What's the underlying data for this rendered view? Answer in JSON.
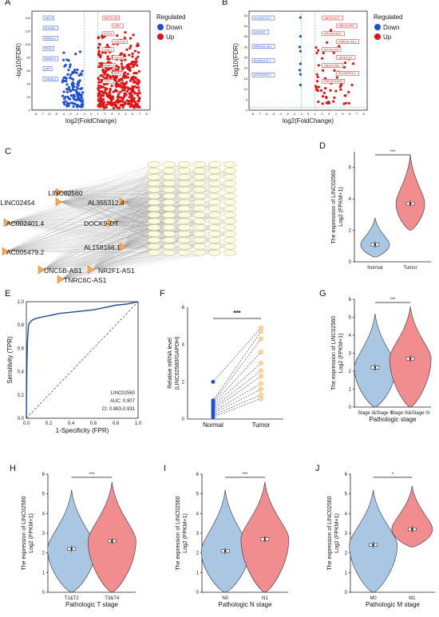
{
  "colors": {
    "down": "#1f4fd6",
    "up": "#e01414",
    "violin_blue": "#a9c6e3",
    "violin_red": "#f18d8e",
    "curve": "#1f4e8c",
    "orange": "#f4a950",
    "node_fill": "#fffde0"
  },
  "panels": {
    "A": {
      "label": "A",
      "title": "",
      "xlabel": "log2(FoldChange)",
      "ylabel": "-log10(FDR)",
      "legend_title": "Regulated",
      "legend": [
        "Down",
        "Up"
      ],
      "xticks": [
        "-8",
        "-7",
        "-6",
        "-5",
        "-4",
        "-3",
        "-2",
        "-1",
        "0",
        "1",
        "2",
        "3",
        "4",
        "5",
        "6",
        "7",
        "8"
      ],
      "yticks": [
        "0",
        "20",
        "40",
        "60",
        "80",
        "100",
        "120",
        "140"
      ],
      "down_genes": [
        "GPC3",
        "PLA2R1",
        "RAPSS2",
        "PSS4",
        "RASSF3",
        "DPT",
        "CHRDL1"
      ],
      "up_genes": [
        "METTL7B",
        "LIPH",
        "ETV4",
        "GOLT1A",
        "GAL1",
        "CDH3",
        "MMP12",
        "ERP4",
        "SPP1"
      ]
    },
    "B": {
      "label": "B",
      "xlabel": "log2(FoldChange)",
      "ylabel": "-log10(FDR)",
      "legend_title": "Regulated",
      "legend": [
        "Down",
        "Up"
      ],
      "xticks": [
        "-8",
        "-7",
        "-6",
        "-5",
        "-4",
        "-3",
        "-2",
        "-1",
        "0",
        "1",
        "2",
        "3",
        "4",
        "5",
        "6",
        "7",
        "8"
      ],
      "yticks": [
        "0",
        "5",
        "10",
        "15",
        "20",
        "25",
        "30",
        "35",
        "40",
        "45"
      ],
      "down_genes": [
        "AL054574.1",
        "LINC947",
        "MPPED2-AS1",
        "AC062015.1",
        "AF002818.1"
      ],
      "up_genes": [
        "LINC02471",
        "LINC02454",
        "STK32A-AS1",
        "TNRC6C-AS1",
        "DOCK9-DT",
        "LRRK2-DT",
        "LINC02560",
        "AC254633.1",
        "MIR181A2HG"
      ]
    },
    "C": {
      "label": "C",
      "hubs": [
        "LINC02560",
        "LINC02454",
        "AL355312.4",
        "AC002401.4",
        "DOCK9-DT",
        "AL158166.1",
        "AC005479.2",
        "UNC5B-AS1",
        "NR2F1-AS1",
        "TNRC6C-AS1"
      ]
    },
    "D": {
      "label": "D",
      "ylabel": "The expression of LINC02560",
      "ylabel2": "Log2 (FPKM+1)",
      "categories": [
        "Normal",
        "Tumor"
      ],
      "sig": "***",
      "yticks": [
        "0",
        "2",
        "4",
        "6"
      ],
      "chart_data": {
        "type": "violin",
        "categories": [
          "Normal",
          "Tumor"
        ],
        "medians": [
          1.1,
          3.7
        ],
        "ranges": [
          [
            0.3,
            2.8
          ],
          [
            2.0,
            6.8
          ]
        ],
        "ylim": [
          0,
          7
        ]
      }
    },
    "E": {
      "label": "E",
      "xlabel": "1-Specificity (FPR)",
      "ylabel": "Sensitivity (TPR)",
      "legend": "LINC02560",
      "auc": "AUC: 0.907",
      "ci": "CI: 0.883-0.931",
      "ticks": [
        "0.0",
        "0.2",
        "0.4",
        "0.6",
        "0.8",
        "1.0"
      ],
      "chart_data": {
        "type": "line",
        "x": [
          0,
          0.005,
          0.01,
          0.02,
          0.03,
          0.05,
          0.07,
          0.1,
          0.15,
          0.2,
          0.3,
          0.4,
          0.5,
          0.6,
          0.7,
          0.8,
          0.9,
          1.0
        ],
        "y": [
          0,
          0.45,
          0.66,
          0.8,
          0.82,
          0.84,
          0.85,
          0.86,
          0.87,
          0.88,
          0.9,
          0.91,
          0.92,
          0.93,
          0.95,
          0.97,
          0.98,
          1.0
        ],
        "xlim": [
          0,
          1
        ],
        "ylim": [
          0,
          1
        ]
      }
    },
    "F": {
      "label": "F",
      "ylabel": "Relative mRNA level",
      "ylabel2": "(LINC02560/GAPDH)",
      "categories": [
        "Normal",
        "Tumor"
      ],
      "sig": "***",
      "yticks": [
        "0",
        "2",
        "4",
        "6"
      ],
      "chart_data": {
        "type": "paired",
        "normal": [
          2.0,
          1.0,
          0.9,
          0.8,
          0.7,
          0.6,
          0.5,
          0.4,
          0.3,
          0.2,
          0.1
        ],
        "tumor": [
          4.9,
          4.7,
          4.3,
          3.6,
          3.0,
          2.6,
          2.3,
          1.9,
          1.6,
          1.3,
          1.1
        ],
        "ylim": [
          0,
          6
        ]
      }
    },
    "G": {
      "label": "G",
      "ylabel": "The expression of LINC02560",
      "ylabel2": "Log2 (FPKM+1)",
      "categories": [
        "Stage I&Stage II",
        "Stage III&Stage IV"
      ],
      "xlabel": "Pathologic stage",
      "sig": "***",
      "yticks": [
        "0",
        "1",
        "2",
        "3",
        "4",
        "5",
        "6"
      ],
      "chart_data": {
        "type": "violin",
        "categories": [
          "Stage I&Stage II",
          "Stage III&Stage IV"
        ],
        "medians": [
          2.2,
          2.7
        ],
        "ranges": [
          [
            0,
            5.2
          ],
          [
            0,
            5.6
          ]
        ],
        "ylim": [
          0,
          6
        ]
      }
    },
    "H": {
      "label": "H",
      "ylabel": "The expression of LINC02560",
      "ylabel2": "Log2 (FPKM+1)",
      "categories": [
        "T1&T2",
        "T3&T4"
      ],
      "xlabel": "Pathologic T stage",
      "sig": "***",
      "yticks": [
        "0",
        "1",
        "2",
        "3",
        "4",
        "5",
        "6"
      ],
      "chart_data": {
        "type": "violin",
        "categories": [
          "T1&T2",
          "T3&T4"
        ],
        "medians": [
          2.2,
          2.6
        ],
        "ranges": [
          [
            0,
            5.2
          ],
          [
            0,
            5.6
          ]
        ],
        "ylim": [
          0,
          6
        ]
      }
    },
    "I": {
      "label": "I",
      "ylabel": "The expression of LINC02560",
      "ylabel2": "Log2 (FPKM+1)",
      "categories": [
        "N0",
        "N1"
      ],
      "xlabel": "Pathologic N stage",
      "sig": "***",
      "yticks": [
        "0",
        "1",
        "2",
        "3",
        "4",
        "5",
        "6"
      ],
      "chart_data": {
        "type": "violin",
        "categories": [
          "N0",
          "N1"
        ],
        "medians": [
          2.1,
          2.7
        ],
        "ranges": [
          [
            0,
            5.2
          ],
          [
            0,
            5.6
          ]
        ],
        "ylim": [
          0,
          6
        ]
      }
    },
    "J": {
      "label": "J",
      "ylabel": "The expression of LINC02560",
      "ylabel2": "Log2 (FPKM+1)",
      "categories": [
        "M0",
        "M1"
      ],
      "xlabel": "Pathologic M stage",
      "sig": "*",
      "yticks": [
        "0",
        "1",
        "2",
        "3",
        "4",
        "5",
        "6"
      ],
      "chart_data": {
        "type": "violin",
        "categories": [
          "M0",
          "M1"
        ],
        "medians": [
          2.4,
          3.2
        ],
        "ranges": [
          [
            0,
            5.2
          ],
          [
            2.3,
            5.4
          ]
        ],
        "ylim": [
          0,
          6
        ]
      }
    }
  }
}
